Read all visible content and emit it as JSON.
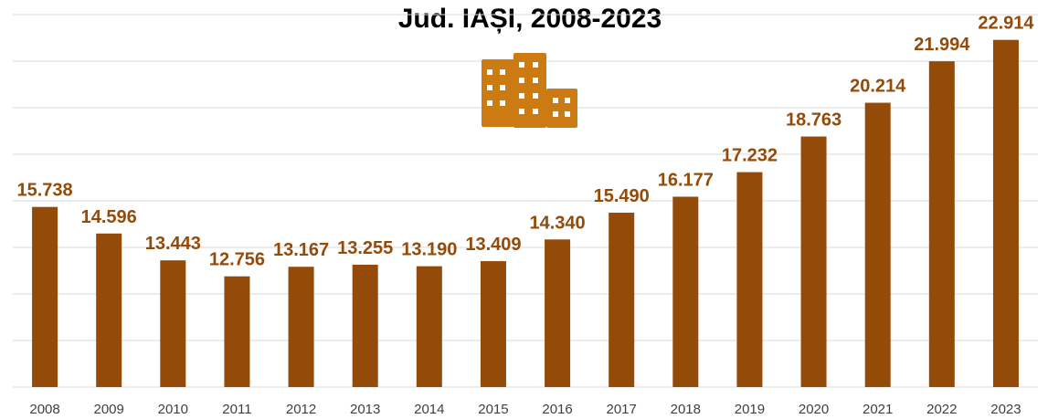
{
  "chart_data": {
    "type": "bar",
    "title": "Jud. IAȘI, 2008-2023",
    "xlabel": "",
    "ylabel": "",
    "categories": [
      "2008",
      "2009",
      "2010",
      "2011",
      "2012",
      "2013",
      "2014",
      "2015",
      "2016",
      "2017",
      "2018",
      "2019",
      "2020",
      "2021",
      "2022",
      "2023"
    ],
    "values": [
      15738,
      14596,
      13443,
      12756,
      13167,
      13255,
      13190,
      13409,
      14340,
      15490,
      16177,
      17232,
      18763,
      20214,
      21994,
      22914
    ],
    "data_labels": [
      "15.738",
      "14.596",
      "13.443",
      "12.756",
      "13.167",
      "13.255",
      "13.190",
      "13.409",
      "14.340",
      "15.490",
      "16.177",
      "17.232",
      "18.763",
      "20.214",
      "21.994",
      "22.914"
    ],
    "ylim": [
      8000,
      24000
    ],
    "y_axis_visible": false,
    "grid": true,
    "legend": "none"
  },
  "colors": {
    "bar": "#944a09",
    "data_label": "#944a09",
    "gridline": "#d9d9d9",
    "icon": "#cc7a12"
  },
  "icon": "buildings-icon"
}
